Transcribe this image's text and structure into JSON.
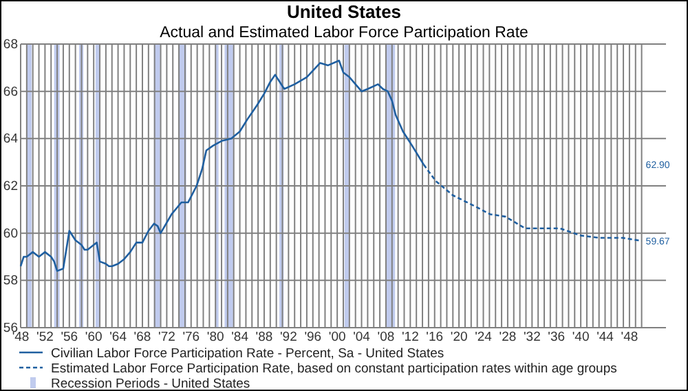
{
  "chart_data": {
    "type": "line",
    "title": "United States",
    "subtitle": "Actual and Estimated Labor Force Participation Rate",
    "xlim": [
      1948,
      2054
    ],
    "ylim": [
      56,
      68
    ],
    "yticks": [
      56,
      58,
      60,
      62,
      64,
      66,
      68
    ],
    "xticks": [
      {
        "value": 1948,
        "label": "'48"
      },
      {
        "value": 1949,
        "label": null
      },
      {
        "value": 1950,
        "label": null
      },
      {
        "value": 1951,
        "label": null
      },
      {
        "value": 1952,
        "label": "'52"
      },
      {
        "value": 1953,
        "label": null
      },
      {
        "value": 1954,
        "label": null
      },
      {
        "value": 1955,
        "label": null
      },
      {
        "value": 1956,
        "label": "'56"
      },
      {
        "value": 1957,
        "label": null
      },
      {
        "value": 1958,
        "label": null
      },
      {
        "value": 1959,
        "label": null
      },
      {
        "value": 1960,
        "label": "'60"
      },
      {
        "value": 1961,
        "label": null
      },
      {
        "value": 1962,
        "label": null
      },
      {
        "value": 1963,
        "label": null
      },
      {
        "value": 1964,
        "label": "'64"
      },
      {
        "value": 1965,
        "label": null
      },
      {
        "value": 1966,
        "label": null
      },
      {
        "value": 1967,
        "label": null
      },
      {
        "value": 1968,
        "label": "'68"
      },
      {
        "value": 1969,
        "label": null
      },
      {
        "value": 1970,
        "label": null
      },
      {
        "value": 1971,
        "label": null
      },
      {
        "value": 1972,
        "label": "'72"
      },
      {
        "value": 1973,
        "label": null
      },
      {
        "value": 1974,
        "label": null
      },
      {
        "value": 1975,
        "label": null
      },
      {
        "value": 1976,
        "label": "'76"
      },
      {
        "value": 1977,
        "label": null
      },
      {
        "value": 1978,
        "label": null
      },
      {
        "value": 1979,
        "label": null
      },
      {
        "value": 1980,
        "label": "'80"
      },
      {
        "value": 1981,
        "label": null
      },
      {
        "value": 1982,
        "label": null
      },
      {
        "value": 1983,
        "label": null
      },
      {
        "value": 1984,
        "label": "'84"
      },
      {
        "value": 1985,
        "label": null
      },
      {
        "value": 1986,
        "label": null
      },
      {
        "value": 1987,
        "label": null
      },
      {
        "value": 1988,
        "label": "'88"
      },
      {
        "value": 1989,
        "label": null
      },
      {
        "value": 1990,
        "label": null
      },
      {
        "value": 1991,
        "label": null
      },
      {
        "value": 1992,
        "label": "'92"
      },
      {
        "value": 1993,
        "label": null
      },
      {
        "value": 1994,
        "label": null
      },
      {
        "value": 1995,
        "label": null
      },
      {
        "value": 1996,
        "label": "'96"
      },
      {
        "value": 1997,
        "label": null
      },
      {
        "value": 1998,
        "label": null
      },
      {
        "value": 1999,
        "label": null
      },
      {
        "value": 2000,
        "label": "'00"
      },
      {
        "value": 2001,
        "label": null
      },
      {
        "value": 2002,
        "label": null
      },
      {
        "value": 2003,
        "label": null
      },
      {
        "value": 2004,
        "label": "'04"
      },
      {
        "value": 2005,
        "label": null
      },
      {
        "value": 2006,
        "label": null
      },
      {
        "value": 2007,
        "label": null
      },
      {
        "value": 2008,
        "label": "'08"
      },
      {
        "value": 2009,
        "label": null
      },
      {
        "value": 2010,
        "label": null
      },
      {
        "value": 2011,
        "label": null
      },
      {
        "value": 2012,
        "label": "'12"
      },
      {
        "value": 2013,
        "label": null
      },
      {
        "value": 2014,
        "label": null
      },
      {
        "value": 2015,
        "label": null
      },
      {
        "value": 2016,
        "label": "'16"
      },
      {
        "value": 2017,
        "label": null
      },
      {
        "value": 2018,
        "label": null
      },
      {
        "value": 2019,
        "label": null
      },
      {
        "value": 2020,
        "label": "'20"
      },
      {
        "value": 2021,
        "label": null
      },
      {
        "value": 2022,
        "label": null
      },
      {
        "value": 2023,
        "label": null
      },
      {
        "value": 2024,
        "label": "'24"
      },
      {
        "value": 2025,
        "label": null
      },
      {
        "value": 2026,
        "label": null
      },
      {
        "value": 2027,
        "label": null
      },
      {
        "value": 2028,
        "label": "'28"
      },
      {
        "value": 2029,
        "label": null
      },
      {
        "value": 2030,
        "label": null
      },
      {
        "value": 2031,
        "label": null
      },
      {
        "value": 2032,
        "label": "'32"
      },
      {
        "value": 2033,
        "label": null
      },
      {
        "value": 2034,
        "label": null
      },
      {
        "value": 2035,
        "label": null
      },
      {
        "value": 2036,
        "label": "'36"
      },
      {
        "value": 2037,
        "label": null
      },
      {
        "value": 2038,
        "label": null
      },
      {
        "value": 2039,
        "label": null
      },
      {
        "value": 2040,
        "label": "'40"
      },
      {
        "value": 2041,
        "label": null
      },
      {
        "value": 2042,
        "label": null
      },
      {
        "value": 2043,
        "label": null
      },
      {
        "value": 2044,
        "label": "'44"
      },
      {
        "value": 2045,
        "label": null
      },
      {
        "value": 2046,
        "label": null
      },
      {
        "value": 2047,
        "label": null
      },
      {
        "value": 2048,
        "label": "'48"
      },
      {
        "value": 2049,
        "label": null
      },
      {
        "value": 2050,
        "label": null
      }
    ],
    "grid": true,
    "legend": "bottom",
    "series": [
      {
        "name": "Civilian Labor Force Participation Rate - Percent, Sa - United States",
        "color": "#1f5fa0",
        "line_style": "solid",
        "x": [
          1948,
          1948.5,
          1949,
          1950,
          1951,
          1952,
          1953,
          1953.5,
          1954,
          1955,
          1955.5,
          1956,
          1957,
          1958,
          1958.5,
          1959,
          1960,
          1960.5,
          1961,
          1962,
          1962.5,
          1963,
          1964,
          1965,
          1966,
          1967,
          1968,
          1969,
          1969.9,
          1970.5,
          1971,
          1972.8,
          1974.4,
          1975.5,
          1976.9,
          1977.8,
          1978.5,
          1979.6,
          1981,
          1982.6,
          1984,
          1985.2,
          1986.8,
          1988,
          1989,
          1989.8,
          1991.3,
          1993,
          1995,
          1997.2,
          1998.5,
          2000.3,
          2001,
          2002,
          2004,
          2005,
          2006.7,
          2007.5,
          2008.3,
          2009,
          2009.6,
          2010.8,
          2012.3,
          2014.2
        ],
        "values": [
          58.6,
          59.0,
          59.0,
          59.2,
          59.0,
          59.2,
          59.0,
          58.8,
          58.4,
          58.5,
          59.3,
          60.1,
          59.7,
          59.5,
          59.3,
          59.3,
          59.5,
          59.6,
          58.8,
          58.7,
          58.6,
          58.6,
          58.7,
          58.9,
          59.2,
          59.6,
          59.6,
          60.1,
          60.4,
          60.3,
          60.0,
          60.8,
          61.3,
          61.3,
          62.0,
          62.7,
          63.5,
          63.7,
          63.9,
          64.0,
          64.3,
          64.8,
          65.4,
          65.9,
          66.4,
          66.7,
          66.1,
          66.3,
          66.6,
          67.2,
          67.1,
          67.3,
          66.8,
          66.6,
          66.0,
          66.1,
          66.3,
          66.1,
          66.0,
          65.6,
          65.0,
          64.3,
          63.7,
          62.9
        ]
      },
      {
        "name": "Estimated Labor Force Participation Rate, based on constant participation rates within age groups",
        "color": "#1f5fa0",
        "line_style": "dashed",
        "x": [
          2014.2,
          2016.2,
          2019,
          2022.9,
          2025.1,
          2027.6,
          2030.9,
          2034.9,
          2036.6,
          2040,
          2043,
          2046.9,
          2050
        ],
        "values": [
          62.9,
          62.2,
          61.6,
          61.1,
          60.8,
          60.7,
          60.2,
          60.2,
          60.2,
          59.9,
          59.8,
          59.8,
          59.67
        ]
      }
    ],
    "bands": [
      {
        "axis": "x",
        "from": 1948.9,
        "to": 1949.8,
        "label": "Recession Periods - United States",
        "color": "#c0cbee"
      },
      {
        "axis": "x",
        "from": 1953.5,
        "to": 1954.4,
        "color": "#c0cbee"
      },
      {
        "axis": "x",
        "from": 1957.6,
        "to": 1958.3,
        "color": "#c0cbee"
      },
      {
        "axis": "x",
        "from": 1960.3,
        "to": 1961.1,
        "color": "#c0cbee"
      },
      {
        "axis": "x",
        "from": 1969.9,
        "to": 1970.9,
        "color": "#c0cbee"
      },
      {
        "axis": "x",
        "from": 1973.9,
        "to": 1975.2,
        "color": "#c0cbee"
      },
      {
        "axis": "x",
        "from": 1980.0,
        "to": 1980.5,
        "color": "#c0cbee"
      },
      {
        "axis": "x",
        "from": 1981.5,
        "to": 1982.9,
        "color": "#c0cbee"
      },
      {
        "axis": "x",
        "from": 1990.5,
        "to": 1991.2,
        "color": "#c0cbee"
      },
      {
        "axis": "x",
        "from": 2001.2,
        "to": 2001.9,
        "color": "#c0cbee"
      },
      {
        "axis": "x",
        "from": 2007.9,
        "to": 2009.5,
        "color": "#c0cbee"
      }
    ],
    "annotations": [
      "62.90",
      "59.67"
    ]
  }
}
